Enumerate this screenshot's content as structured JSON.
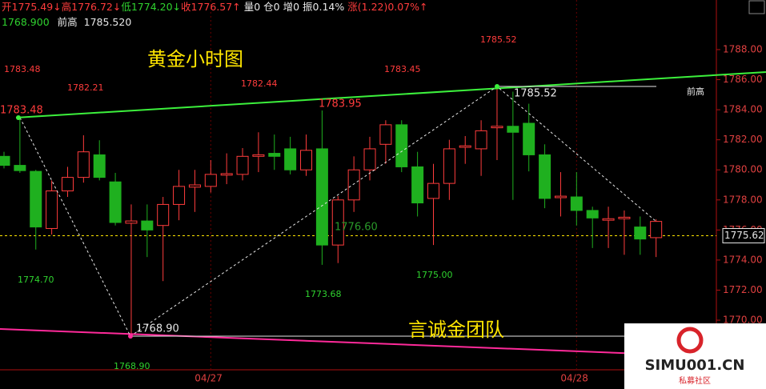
{
  "chart_data": {
    "type": "candlestick",
    "info_bar": [
      {
        "text": "开1775.49↓",
        "color": "#ff3c3c"
      },
      {
        "text": "高1776.72↓",
        "color": "#ff3c3c"
      },
      {
        "text": "低1774.20↓",
        "color": "#2fd22f"
      },
      {
        "text": "收1776.57↑",
        "color": "#ff3c3c"
      },
      {
        "text": "量0",
        "color": "#e8e8e8"
      },
      {
        "text": "仓0",
        "color": "#e8e8e8"
      },
      {
        "text": "增0",
        "color": "#e8e8e8"
      },
      {
        "text": "振0.14%",
        "color": "#e8e8e8"
      },
      {
        "text": "涨(1.22)0.07%↑",
        "color": "#ff3c3c"
      }
    ],
    "info_line2": {
      "low_value": "1768.900",
      "prev_high_label": "前高",
      "prev_high_value": "1785.520"
    },
    "title": "黄金小时图",
    "subtitle": "言诚金团队",
    "categories": [
      null,
      null,
      null,
      null,
      null,
      null,
      null,
      null,
      null,
      null,
      null,
      null,
      null,
      "04/27",
      null,
      null,
      null,
      null,
      null,
      null,
      null,
      null,
      null,
      null,
      null,
      null,
      null,
      null,
      null,
      null,
      null,
      null,
      null,
      null,
      null,
      null,
      "04/28",
      null,
      null,
      null,
      null,
      null
    ],
    "open": [
      1780.9,
      1780.3,
      1779.9,
      1776.1,
      1778.6,
      1779.5,
      1781.0,
      1779.2,
      1776.45,
      1776.6,
      1776.3,
      1777.7,
      1778.85,
      1778.9,
      1779.65,
      1779.7,
      1780.9,
      1781.1,
      1781.4,
      1780.0,
      1781.4,
      1775.0,
      1778.0,
      1780.0,
      1781.7,
      1783.0,
      1780.2,
      1778.1,
      1779.1,
      1781.5,
      1781.4,
      1782.8,
      1782.9,
      1783.1,
      1781.0,
      1778.15,
      1778.2,
      1777.3,
      1776.65,
      1776.75,
      1776.2,
      1775.49
    ],
    "high": [
      1781.2,
      1783.48,
      1780.0,
      1779.3,
      1780.2,
      1782.3,
      1781.97,
      1779.8,
      1777.7,
      1777.7,
      1778.2,
      1780.0,
      1780.0,
      1780.65,
      1781.1,
      1781.45,
      1782.5,
      1782.35,
      1782.2,
      1782.35,
      1783.95,
      1778.25,
      1780.9,
      1782.2,
      1783.3,
      1783.3,
      1781.2,
      1780.4,
      1782.0,
      1782.25,
      1783.3,
      1785.52,
      1785.2,
      1784.4,
      1781.7,
      1779.85,
      1779.85,
      1777.55,
      1777.55,
      1777.3,
      1776.9,
      1776.72
    ],
    "low": [
      1780.1,
      1779.8,
      1774.7,
      1775.7,
      1778.2,
      1779.15,
      1779.3,
      1776.3,
      1768.9,
      1774.2,
      1772.6,
      1776.65,
      1777.2,
      1778.5,
      1779.05,
      1779.3,
      1779.85,
      1780.0,
      1779.7,
      1779.6,
      1773.68,
      1773.8,
      1777.2,
      1779.3,
      1780.4,
      1779.85,
      1776.9,
      1775.0,
      1778.0,
      1780.4,
      1779.6,
      1780.65,
      1778.0,
      1779.9,
      1777.45,
      1776.9,
      1776.3,
      1774.8,
      1774.8,
      1774.35,
      1774.35,
      1774.2
    ],
    "close": [
      1780.3,
      1779.95,
      1776.2,
      1778.6,
      1779.5,
      1781.2,
      1779.5,
      1776.5,
      1776.6,
      1776.0,
      1777.7,
      1778.9,
      1779.0,
      1779.7,
      1779.75,
      1780.9,
      1781.0,
      1780.9,
      1780.0,
      1781.3,
      1775.0,
      1778.0,
      1780.0,
      1781.4,
      1783.0,
      1780.2,
      1777.8,
      1779.1,
      1781.4,
      1781.6,
      1782.6,
      1782.9,
      1782.5,
      1781.0,
      1778.1,
      1778.25,
      1777.3,
      1776.8,
      1776.75,
      1776.85,
      1775.4,
      1776.57
    ],
    "up_color": "#ff3c3c",
    "down_color": "#1fb01f",
    "current_price": 1775.62,
    "ylim": [
      1766.7,
      1791.3
    ],
    "yticks": [
      {
        "value": 1770,
        "label": "1770.00"
      },
      {
        "value": 1772,
        "label": "1772.00"
      },
      {
        "value": 1774,
        "label": "1774.00"
      },
      {
        "value": 1776,
        "label": "1776.00"
      },
      {
        "value": 1778,
        "label": "1778.00"
      },
      {
        "value": 1780,
        "label": "1780.00"
      },
      {
        "value": 1782,
        "label": "1782.00"
      },
      {
        "value": 1784,
        "label": "1784.00"
      },
      {
        "value": 1786,
        "label": "1786.00"
      },
      {
        "value": 1788,
        "label": "1788.00"
      }
    ],
    "annotations": [
      "1783.48",
      "1782.21",
      "1782.44",
      "1783.45",
      "1785.52",
      "1783.48",
      "1783.95",
      "1785.52",
      "前高",
      "1776.60",
      "1774.70",
      "1773.68",
      "1775.00",
      "1768.90",
      "1768.90"
    ],
    "watermark": {
      "site": "SIMU001.CN",
      "name": "私募社区"
    }
  }
}
